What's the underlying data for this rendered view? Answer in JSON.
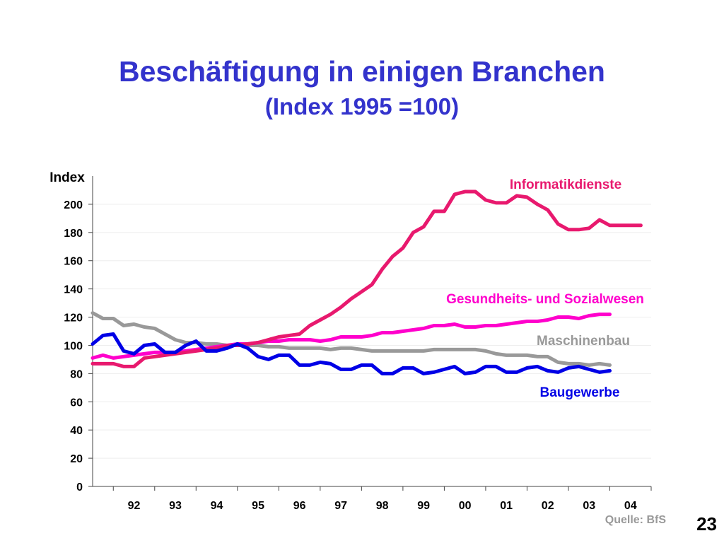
{
  "slide": {
    "title": "Beschäftigung in einigen Branchen",
    "subtitle": "(Index 1995 =100)",
    "source": "Quelle: BfS",
    "page_number": "23"
  },
  "chart_data": {
    "type": "line",
    "title": "",
    "ylabel": "Index",
    "xlabel": "",
    "ylim": [
      0,
      220
    ],
    "yticks": [
      0,
      20,
      40,
      60,
      80,
      100,
      120,
      140,
      160,
      180,
      200
    ],
    "xlim": [
      1991.5,
      2005.0
    ],
    "xtick_labels": [
      "92",
      "93",
      "94",
      "95",
      "96",
      "97",
      "98",
      "99",
      "00",
      "01",
      "02",
      "03",
      "04"
    ],
    "xtick_centers": [
      1992.5,
      1993.5,
      1994.5,
      1995.5,
      1996.5,
      1997.5,
      1998.5,
      1999.5,
      2000.5,
      2001.5,
      2002.5,
      2003.5,
      2004.5
    ],
    "grid": true,
    "legend": "inline labels",
    "series": [
      {
        "name": "Informatikdienste",
        "color": "#e8196e",
        "x": [
          1991.5,
          1991.75,
          1992.0,
          1992.25,
          1992.5,
          1992.75,
          1993.0,
          1993.25,
          1993.5,
          1993.75,
          1994.0,
          1994.25,
          1994.5,
          1994.75,
          1995.0,
          1995.25,
          1995.5,
          1995.75,
          1996.0,
          1996.25,
          1996.5,
          1996.75,
          1997.0,
          1997.25,
          1997.5,
          1997.75,
          1998.0,
          1998.25,
          1998.5,
          1998.75,
          1999.0,
          1999.25,
          1999.5,
          1999.75,
          2000.0,
          2000.25,
          2000.5,
          2000.75,
          2001.0,
          2001.25,
          2001.5,
          2001.75,
          2002.0,
          2002.25,
          2002.5,
          2002.75,
          2003.0,
          2003.25,
          2003.5,
          2003.75,
          2004.0,
          2004.25,
          2004.5,
          2004.75
        ],
        "values": [
          87,
          87,
          87,
          85,
          85,
          91,
          92,
          93,
          94,
          95,
          96,
          97,
          98,
          100,
          100,
          101,
          102,
          104,
          106,
          107,
          108,
          114,
          118,
          122,
          127,
          133,
          138,
          143,
          154,
          163,
          169,
          180,
          184,
          195,
          195,
          207,
          209,
          209,
          203,
          201,
          201,
          206,
          205,
          200,
          196,
          186,
          182,
          182,
          183,
          189,
          185,
          185,
          185,
          185
        ]
      },
      {
        "name": "Gesundheits- und Sozialwesen",
        "color": "#ff00cc",
        "x": [
          1991.5,
          1991.75,
          1992.0,
          1992.25,
          1992.5,
          1992.75,
          1993.0,
          1993.25,
          1993.5,
          1993.75,
          1994.0,
          1994.25,
          1994.5,
          1994.75,
          1995.0,
          1995.25,
          1995.5,
          1995.75,
          1996.0,
          1996.25,
          1996.5,
          1996.75,
          1997.0,
          1997.25,
          1997.5,
          1997.75,
          1998.0,
          1998.25,
          1998.5,
          1998.75,
          1999.0,
          1999.25,
          1999.5,
          1999.75,
          2000.0,
          2000.25,
          2000.5,
          2000.75,
          2001.0,
          2001.25,
          2001.5,
          2001.75,
          2002.0,
          2002.25,
          2002.5,
          2002.75,
          2003.0,
          2003.25,
          2003.5,
          2003.75,
          2004.0
        ],
        "values": [
          91,
          93,
          91,
          92,
          93,
          94,
          95,
          95,
          95,
          96,
          97,
          98,
          99,
          100,
          101,
          101,
          102,
          103,
          103,
          104,
          104,
          104,
          103,
          104,
          106,
          106,
          106,
          107,
          109,
          109,
          110,
          111,
          112,
          114,
          114,
          115,
          113,
          113,
          114,
          114,
          115,
          116,
          117,
          117,
          118,
          120,
          120,
          119,
          121,
          122,
          122
        ]
      },
      {
        "name": "Maschinenbau",
        "color": "#999999",
        "x": [
          1991.5,
          1991.75,
          1992.0,
          1992.25,
          1992.5,
          1992.75,
          1993.0,
          1993.25,
          1993.5,
          1993.75,
          1994.0,
          1994.25,
          1994.5,
          1994.75,
          1995.0,
          1995.25,
          1995.5,
          1995.75,
          1996.0,
          1996.25,
          1996.5,
          1996.75,
          1997.0,
          1997.25,
          1997.5,
          1997.75,
          1998.0,
          1998.25,
          1998.5,
          1998.75,
          1999.0,
          1999.25,
          1999.5,
          1999.75,
          2000.0,
          2000.25,
          2000.5,
          2000.75,
          2001.0,
          2001.25,
          2001.5,
          2001.75,
          2002.0,
          2002.25,
          2002.5,
          2002.75,
          2003.0,
          2003.25,
          2003.5,
          2003.75,
          2004.0
        ],
        "values": [
          123,
          119,
          119,
          114,
          115,
          113,
          112,
          108,
          104,
          102,
          102,
          101,
          101,
          100,
          100,
          100,
          100,
          99,
          99,
          98,
          98,
          98,
          98,
          97,
          98,
          98,
          97,
          96,
          96,
          96,
          96,
          96,
          96,
          97,
          97,
          97,
          97,
          97,
          96,
          94,
          93,
          93,
          93,
          92,
          92,
          88,
          87,
          87,
          86,
          87,
          86
        ]
      },
      {
        "name": "Baugewerbe",
        "color": "#0000e6",
        "x": [
          1991.5,
          1991.75,
          1992.0,
          1992.25,
          1992.5,
          1992.75,
          1993.0,
          1993.25,
          1993.5,
          1993.75,
          1994.0,
          1994.25,
          1994.5,
          1994.75,
          1995.0,
          1995.25,
          1995.5,
          1995.75,
          1996.0,
          1996.25,
          1996.5,
          1996.75,
          1997.0,
          1997.25,
          1997.5,
          1997.75,
          1998.0,
          1998.25,
          1998.5,
          1998.75,
          1999.0,
          1999.25,
          1999.5,
          1999.75,
          2000.0,
          2000.25,
          2000.5,
          2000.75,
          2001.0,
          2001.25,
          2001.5,
          2001.75,
          2002.0,
          2002.25,
          2002.5,
          2002.75,
          2003.0,
          2003.25,
          2003.5,
          2003.75,
          2004.0
        ],
        "values": [
          101,
          107,
          108,
          96,
          94,
          100,
          101,
          95,
          95,
          100,
          103,
          96,
          96,
          98,
          101,
          98,
          92,
          90,
          93,
          93,
          86,
          86,
          88,
          87,
          83,
          83,
          86,
          86,
          80,
          80,
          84,
          84,
          80,
          81,
          83,
          85,
          80,
          81,
          85,
          85,
          81,
          81,
          84,
          85,
          82,
          81,
          84,
          85,
          83,
          81,
          82
        ]
      }
    ]
  }
}
